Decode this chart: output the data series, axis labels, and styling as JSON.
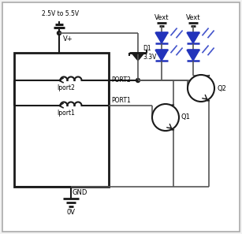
{
  "bg_color": "#f2f2f2",
  "border_color": "#aaaaaa",
  "line_color": "#1a1a1a",
  "led_color": "#2233bb",
  "ray_color": "#4455cc",
  "vplus_label": "V+",
  "vdd_label": "2.5V to 5.5V",
  "gnd_label": "GND",
  "zero_label": "0V",
  "d1_label": "D1\n3.3V",
  "port2_label": "PORT2",
  "port1_label": "PORT1",
  "iport2_label": "Iport2",
  "iport1_label": "Iport1",
  "q1_label": "Q1",
  "q2_label": "Q2",
  "vext_label": "Vext",
  "wire_color": "#555555"
}
